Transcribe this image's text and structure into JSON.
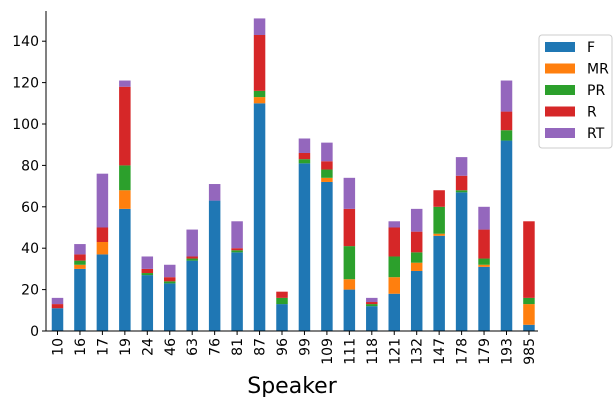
{
  "chart_data": {
    "type": "bar",
    "stacked": true,
    "xlabel": "Speaker",
    "ylabel": "",
    "ylim": [
      0,
      150
    ],
    "yticks": [
      0,
      20,
      40,
      60,
      80,
      100,
      120,
      140
    ],
    "grid": false,
    "legend_position": "top-right",
    "categories": [
      "10",
      "16",
      "17",
      "19",
      "24",
      "46",
      "63",
      "76",
      "81",
      "87",
      "96",
      "99",
      "109",
      "111",
      "118",
      "121",
      "132",
      "147",
      "178",
      "179",
      "193",
      "985"
    ],
    "series": [
      {
        "name": "F",
        "color": "#1f77b4",
        "values": [
          11,
          30,
          37,
          59,
          27,
          23,
          34,
          63,
          38,
          110,
          13,
          81,
          72,
          20,
          12,
          18,
          29,
          46,
          67,
          31,
          92,
          3
        ]
      },
      {
        "name": "MR",
        "color": "#ff7f0e",
        "values": [
          0,
          2,
          6,
          9,
          0,
          0,
          0,
          0,
          0,
          3,
          0,
          0,
          2,
          5,
          0,
          8,
          4,
          1,
          0,
          1,
          0,
          10
        ]
      },
      {
        "name": "PR",
        "color": "#2ca02c",
        "values": [
          0,
          2,
          0,
          12,
          1,
          1,
          1,
          0,
          1,
          3,
          3,
          2,
          4,
          16,
          1,
          10,
          5,
          13,
          1,
          3,
          5,
          3
        ]
      },
      {
        "name": "R",
        "color": "#d62728",
        "values": [
          2,
          3,
          7,
          38,
          2,
          2,
          1,
          0,
          1,
          27,
          3,
          3,
          4,
          18,
          1,
          14,
          10,
          8,
          7,
          14,
          9,
          37
        ]
      },
      {
        "name": "RT",
        "color": "#9467bd",
        "values": [
          3,
          5,
          26,
          3,
          6,
          6,
          13,
          8,
          13,
          8,
          0,
          7,
          9,
          15,
          2,
          3,
          11,
          0,
          9,
          11,
          15,
          0
        ]
      }
    ]
  }
}
